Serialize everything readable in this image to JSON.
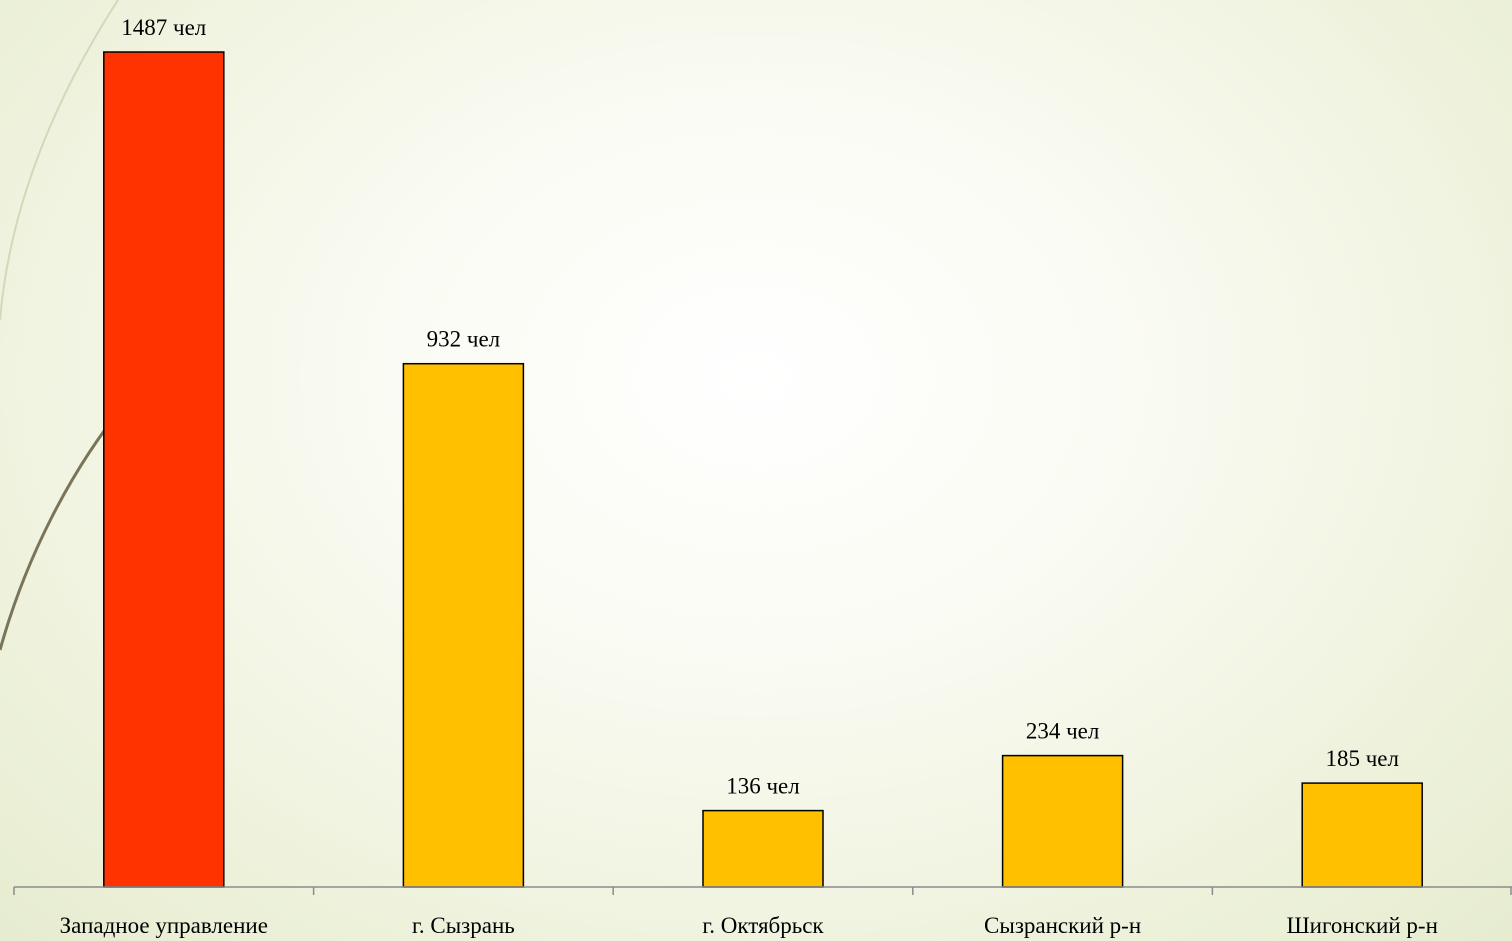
{
  "chart_data": {
    "type": "bar",
    "categories": [
      "Западное управление",
      "г. Сызрань",
      "г. Октябрьск",
      "Сызранский р-н",
      "Шигонский р-н"
    ],
    "values": [
      1487,
      932,
      136,
      234,
      185
    ],
    "data_labels": [
      "1487 чел",
      "932 чел",
      "136 чел",
      "234 чел",
      "185 чел"
    ],
    "bar_colors": [
      "#ff3300",
      "#ffc000",
      "#ffc000",
      "#ffc000",
      "#ffc000"
    ],
    "ylim": [
      0,
      1487
    ],
    "grid": false,
    "legend": "none"
  }
}
